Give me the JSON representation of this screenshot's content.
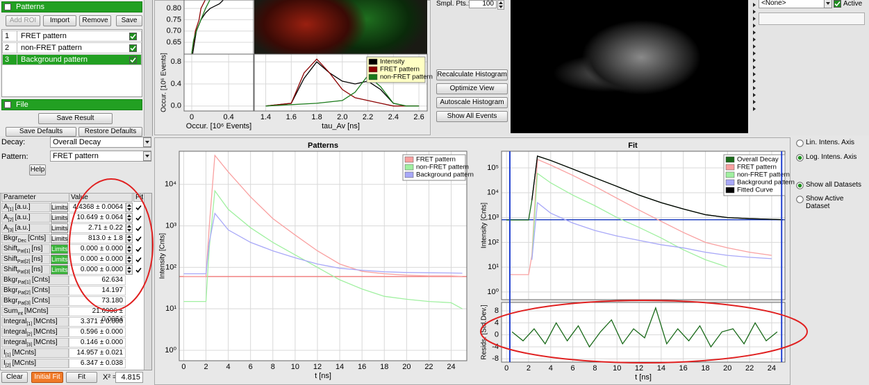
{
  "patterns_panel": {
    "title": "Patterns",
    "buttons": [
      "Add ROI",
      "Import",
      "Remove",
      "Save"
    ],
    "rows": [
      {
        "index": "1",
        "name": "FRET pattern"
      },
      {
        "index": "2",
        "name": "non-FRET pattern"
      },
      {
        "index": "3",
        "name": "Background pattern"
      }
    ]
  },
  "file_panel": {
    "title": "File",
    "buttons": [
      "Save Result",
      "Save Defaults",
      "Restore Defaults"
    ]
  },
  "histogram": {
    "top_plot": {
      "type": "line",
      "xlim": [
        -0.083,
        0.67
      ],
      "ylim": [
        0.598,
        0.837
      ],
      "yticks": [
        {
          "value": 0.8,
          "label": "0.80"
        },
        {
          "value": 0.75,
          "label": "0.75"
        },
        {
          "value": 0.7,
          "label": "0.70"
        },
        {
          "value": 0.65,
          "label": "0.65"
        }
      ],
      "series": [
        {
          "color": "#000000",
          "x": [
            0.01,
            0.03,
            0.05,
            0.1,
            0.15,
            0.2,
            0.3,
            0.35
          ],
          "values": [
            0.6,
            0.65,
            0.7,
            0.75,
            0.78,
            0.8,
            0.82,
            0.84
          ]
        },
        {
          "color": "#8b0000",
          "x": [
            0.0,
            0.02,
            0.04,
            0.08,
            0.1,
            0.15
          ],
          "values": [
            0.6,
            0.65,
            0.7,
            0.75,
            0.8,
            0.84
          ]
        },
        {
          "color": "#1a7a1a",
          "x": [
            0.0,
            0.02,
            0.05,
            0.1,
            0.15,
            0.2
          ],
          "values": [
            0.6,
            0.66,
            0.7,
            0.75,
            0.8,
            0.84
          ]
        }
      ]
    },
    "occurrence_plot": {
      "type": "line",
      "xlim": [
        -0.083,
        0.67
      ],
      "xticks": [
        0,
        0.4
      ],
      "ylim": [
        -0.09,
        0.94
      ],
      "yticks": [
        0.8,
        0.4,
        {
          "value": 0,
          "label": "0.0"
        }
      ],
      "xlabel": "Occur. [10⁶ Events]",
      "ylabel": "Occur. [10⁶ Events]",
      "series": []
    },
    "tau_plot": {
      "type": "line",
      "xlim": [
        1.31,
        2.665
      ],
      "xticks": [
        1.4,
        1.6,
        1.8,
        {
          "value": 2,
          "label": "2.0"
        },
        2.2,
        2.4,
        2.6
      ],
      "ylim": [
        -0.09,
        0.94
      ],
      "xlabel": "tau_Av [ns]",
      "series": [
        {
          "name": "Intensity",
          "color": "#000000",
          "x": [
            1.4,
            1.6,
            1.7,
            1.8,
            1.9,
            2.0,
            2.1,
            2.2,
            2.3,
            2.4,
            2.5,
            2.6
          ],
          "values": [
            0,
            0.05,
            0.5,
            0.8,
            0.6,
            0.45,
            0.4,
            0.45,
            0.3,
            0.05,
            0,
            0
          ]
        },
        {
          "name": "FRET pattern",
          "color": "#8b0000",
          "x": [
            1.4,
            1.6,
            1.7,
            1.8,
            1.9,
            2.0,
            2.1,
            2.2,
            2.3,
            2.4,
            2.6
          ],
          "values": [
            0,
            0.05,
            0.6,
            0.85,
            0.6,
            0.3,
            0.15,
            0.1,
            0.05,
            0,
            0
          ]
        },
        {
          "name": "non-FRET pattern",
          "color": "#1a7a1a",
          "x": [
            1.4,
            1.8,
            2.0,
            2.1,
            2.2,
            2.3,
            2.4,
            2.5,
            2.6
          ],
          "values": [
            0,
            0.05,
            0.1,
            0.25,
            0.55,
            0.35,
            0.05,
            0,
            0
          ]
        }
      ]
    }
  },
  "controls": {
    "sample_points_label": "Smpl. Pts.:",
    "sample_points": "100",
    "buttons": [
      "Recalculate Histogram",
      "Optimize View",
      "Autoscale Histogram",
      "Show All Events"
    ]
  },
  "dataset": {
    "selection": "<None>",
    "active_label": "Active"
  },
  "decay_settings": {
    "decay_label": "Decay:",
    "decay": "Overall Decay",
    "pattern_label": "Pattern:",
    "pattern": "FRET pattern",
    "help": "Help"
  },
  "parameters": {
    "headers": [
      "Parameter",
      "Value",
      "Fit"
    ],
    "limits_label": "Limits",
    "rows": [
      {
        "name": "A",
        "sub": "[1]",
        "unit": "[a.u.]",
        "value": "4.4368 ± 0.0064",
        "limits": true,
        "limits_active": false,
        "fit": true
      },
      {
        "name": "A",
        "sub": "[2]",
        "unit": "[a.u.]",
        "value": "10.649 ± 0.064",
        "limits": true,
        "limits_active": false,
        "fit": true
      },
      {
        "name": "A",
        "sub": "[3]",
        "unit": "[a.u.]",
        "value": "2.71 ± 0.22",
        "limits": true,
        "limits_active": false,
        "fit": true
      },
      {
        "name": "Bkgr",
        "sub": "Dec",
        "unit": "[Cnts]",
        "value": "813.0 ± 1.8",
        "limits": true,
        "limits_active": false,
        "fit": true
      },
      {
        "name": "Shift",
        "sub": "Pat[1]",
        "unit": "[ns]",
        "value": "0.000 ± 0.000",
        "limits": true,
        "limits_active": true,
        "fit": true
      },
      {
        "name": "Shift",
        "sub": "Pat[2]",
        "unit": "[ns]",
        "value": "0.000 ± 0.000",
        "limits": true,
        "limits_active": true,
        "fit": true
      },
      {
        "name": "Shift",
        "sub": "Pat[3]",
        "unit": "[ns]",
        "value": "0.000 ± 0.000",
        "limits": true,
        "limits_active": true,
        "fit": true
      },
      {
        "name": "Bkgr",
        "sub": "Pat[1]",
        "unit": "[Cnts]",
        "value": "62.634",
        "limits": false,
        "limits_active": false,
        "fit": false
      },
      {
        "name": "Bkgr",
        "sub": "Pat[2]",
        "unit": "[Cnts]",
        "value": "14.197",
        "limits": false,
        "limits_active": false,
        "fit": false
      },
      {
        "name": "Bkgr",
        "sub": "Pat[3]",
        "unit": "[Cnts]",
        "value": "73.180",
        "limits": false,
        "limits_active": false,
        "fit": false
      },
      {
        "name": "Sum",
        "sub": "int",
        "unit": "[MCnts]",
        "value": "21.6996 ± 0.0064",
        "limits": false,
        "limits_active": false,
        "fit": false
      },
      {
        "name": "Integral",
        "sub": "[1]",
        "unit": "[MCnts]",
        "value": "3.371 ± 0.000",
        "limits": false,
        "limits_active": false,
        "fit": false
      },
      {
        "name": "Integral",
        "sub": "[2]",
        "unit": "[MCnts]",
        "value": "0.596 ± 0.000",
        "limits": false,
        "limits_active": false,
        "fit": false
      },
      {
        "name": "Integral",
        "sub": "[3]",
        "unit": "[MCnts]",
        "value": "0.146 ± 0.000",
        "limits": false,
        "limits_active": false,
        "fit": false
      },
      {
        "name": "I",
        "sub": "[1]",
        "unit": "[MCnts]",
        "value": "14.957 ± 0.021",
        "limits": false,
        "limits_active": false,
        "fit": false
      },
      {
        "name": "I",
        "sub": "[2]",
        "unit": "[MCnts]",
        "value": "6.347 ± 0.038",
        "limits": false,
        "limits_active": false,
        "fit": false
      }
    ]
  },
  "fit_controls": {
    "buttons": [
      "Clear",
      "Initial Fit",
      "Fit"
    ],
    "chi2_label": "X² =",
    "chi2": "4.815"
  },
  "patterns_chart": {
    "type": "line",
    "title": "Patterns",
    "xlabel": "t [ns]",
    "ylabel": "Intensity [Cnts]",
    "log_y": true,
    "grid": true,
    "xlim": [
      -0.4,
      25.4
    ],
    "xticks": [
      0,
      2,
      4,
      6,
      8,
      10,
      12,
      14,
      16,
      18,
      20,
      22,
      24
    ],
    "ylim": [
      0.56,
      63000
    ],
    "yticks": [
      {
        "value": 1,
        "label": "10⁰"
      },
      {
        "value": 10,
        "label": "10¹"
      },
      {
        "value": 100,
        "label": "10²"
      },
      {
        "value": 1000,
        "label": "10³"
      },
      {
        "value": 10000,
        "label": "10⁴"
      }
    ],
    "hline": 60,
    "hline_color": "#f08080",
    "series": [
      {
        "name": "FRET pattern",
        "color": "#f9a0a0",
        "x": [
          0,
          2,
          2.3,
          2.8,
          4,
          6,
          8,
          10,
          12,
          14,
          16,
          18,
          20,
          22,
          24,
          25
        ],
        "values": [
          60,
          60,
          1000,
          50000,
          20000,
          5000,
          1500,
          600,
          250,
          120,
          80,
          70,
          65,
          62,
          62,
          60
        ]
      },
      {
        "name": "non-FRET pattern",
        "color": "#a0f0a0",
        "x": [
          0,
          2,
          2.3,
          2.8,
          4,
          6,
          8,
          10,
          12,
          14,
          16,
          18,
          20,
          22,
          24,
          25
        ],
        "values": [
          15,
          15,
          300,
          7000,
          2500,
          900,
          400,
          200,
          100,
          50,
          30,
          20,
          17,
          15,
          14,
          10
        ]
      },
      {
        "name": "Background pattern",
        "color": "#a8a8f8",
        "x": [
          0,
          2,
          2.3,
          2.8,
          4,
          6,
          8,
          10,
          12,
          14,
          16,
          18,
          20,
          22,
          24,
          25
        ],
        "values": [
          70,
          70,
          400,
          2000,
          800,
          400,
          250,
          170,
          120,
          95,
          85,
          78,
          75,
          74,
          73,
          72
        ]
      }
    ]
  },
  "fit_chart": {
    "type": "line",
    "title": "Fit",
    "xlabel": "t [ns]",
    "grid": true,
    "xlim": [
      -0.45,
      25.2
    ],
    "xticks": [
      0,
      2,
      4,
      6,
      8,
      10,
      12,
      14,
      16,
      18,
      20,
      22,
      24
    ],
    "fit_range": [
      0.3,
      24.9
    ],
    "main": {
      "ylabel": "Intensity [Cnts]",
      "log_y": true,
      "ylim": [
        0.49,
        470000
      ],
      "yticks": [
        {
          "value": 1,
          "label": "10⁰"
        },
        {
          "value": 10,
          "label": "10¹"
        },
        {
          "value": 100,
          "label": "10²"
        },
        {
          "value": 1000,
          "label": "10³"
        },
        {
          "value": 10000,
          "label": "10⁴"
        },
        {
          "value": 100000,
          "label": "10⁵"
        }
      ],
      "hline": 813,
      "hline_color": "#2040c0",
      "series": [
        {
          "name": "Overall Decay",
          "color": "#1a6a1a",
          "x": [
            0,
            2,
            2.3,
            2.8,
            4,
            6,
            8,
            10,
            12,
            14,
            16,
            18,
            20,
            22,
            24,
            25
          ],
          "values": [
            800,
            800,
            5000,
            300000,
            200000,
            90000,
            40000,
            18000,
            8000,
            4000,
            2200,
            1300,
            1000,
            900,
            850,
            820
          ]
        },
        {
          "name": "FRET pattern",
          "color": "#f9a0a0",
          "x": [
            0.3,
            2,
            2.3,
            2.8,
            4,
            6,
            8,
            10,
            12,
            14,
            16,
            18,
            20,
            22,
            24
          ],
          "values": [
            5,
            5,
            30,
            220000,
            130000,
            50000,
            18000,
            6000,
            2000,
            700,
            250,
            100,
            60,
            40,
            30
          ]
        },
        {
          "name": "non-FRET pattern",
          "color": "#a0f0a0",
          "x": [
            2.3,
            2.8,
            4,
            6,
            8,
            10,
            12,
            14,
            16,
            18,
            20
          ],
          "values": [
            20,
            60000,
            25000,
            8000,
            3000,
            1000,
            400,
            150,
            50,
            20,
            10
          ]
        },
        {
          "name": "Background pattern",
          "color": "#a8a8f8",
          "x": [
            2.3,
            2.8,
            4,
            6,
            8,
            10,
            12,
            14,
            16,
            18,
            20,
            22,
            24
          ],
          "values": [
            20,
            4000,
            1500,
            600,
            300,
            180,
            120,
            80,
            60,
            40,
            30,
            25,
            22
          ]
        },
        {
          "name": "Fitted Curve",
          "color": "#000000",
          "x": [
            2.3,
            2.8,
            4,
            6,
            8,
            10,
            12,
            14,
            16,
            18,
            20,
            22,
            24,
            25
          ],
          "values": [
            5000,
            300000,
            200000,
            90000,
            40000,
            18000,
            8000,
            4000,
            2200,
            1300,
            1000,
            900,
            850,
            820
          ]
        }
      ]
    },
    "residuals": {
      "ylabel": "Resids. [Std.Dev.]",
      "ylim": [
        -9.1,
        10.8
      ],
      "yticks": [
        8,
        4,
        0,
        -4,
        -8
      ],
      "series": [
        {
          "color": "#1a6a1a",
          "x": [
            0.5,
            1.5,
            2.5,
            3.5,
            4.5,
            5.5,
            6.5,
            7.5,
            8.5,
            9.5,
            10.5,
            11.5,
            12.5,
            13.5,
            14.5,
            15.5,
            16.5,
            17.5,
            18.5,
            19.5,
            20.5,
            21.5,
            22.5,
            23.5,
            24.5
          ],
          "values": [
            1,
            -2,
            2,
            -3,
            4,
            -2,
            3,
            -4,
            1,
            5,
            -3,
            2,
            -1,
            9,
            -3,
            2,
            -2,
            3,
            -4,
            1,
            2,
            -3,
            4,
            -2,
            1
          ]
        }
      ]
    }
  },
  "view_options": {
    "intensity_axis": [
      "Lin. Intens. Axis",
      "Log. Intens. Axis"
    ],
    "datasets": [
      "Show all Datasets",
      "Show Active Dataset"
    ]
  }
}
